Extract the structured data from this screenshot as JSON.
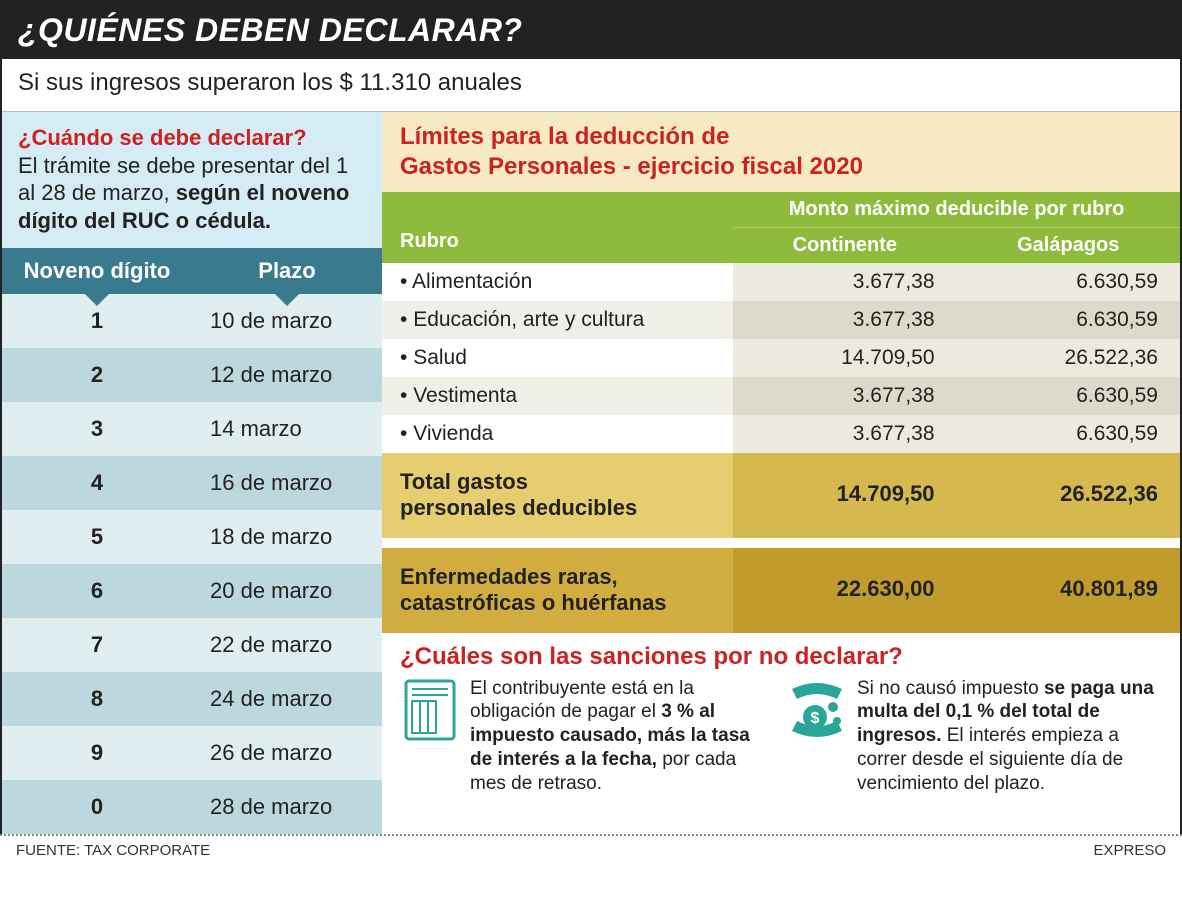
{
  "colors": {
    "title_bg": "#222222",
    "title_fg": "#ffffff",
    "accent_red": "#c22222",
    "when_bg": "#d6ecf4",
    "sched_header_bg": "#3a7a8f",
    "sched_row_light": "#e1eef1",
    "sched_row_dark": "#bcd7de",
    "limits_title_bg": "#f8e9c5",
    "limits_header_bg": "#8fbb3d",
    "limits_row_odd_label": "#ffffff",
    "limits_row_odd_val": "#eceade",
    "limits_row_even_label": "#f1f0e8",
    "limits_row_even_val": "#dddacb",
    "total1_label": "#e6cd6f",
    "total1_val": "#d6b94e",
    "total2_label": "#d1ad3f",
    "total2_val": "#c19b2c",
    "icon_teal": "#2aa59a"
  },
  "title": "¿QUIÉNES DEBEN DECLARAR?",
  "subhead": "Si sus ingresos superaron los $ 11.310 anuales",
  "when": {
    "question": "¿Cuándo se debe declarar?",
    "text_pre": "El trámite se debe presentar del 1 al 28 de marzo, ",
    "text_bold": "según el noveno dígito del RUC o cédula."
  },
  "schedule": {
    "head_digit": "Noveno dígito",
    "head_deadline": "Plazo",
    "rows": [
      {
        "digit": "1",
        "deadline": "10 de marzo"
      },
      {
        "digit": "2",
        "deadline": "12 de marzo"
      },
      {
        "digit": "3",
        "deadline": "14 marzo"
      },
      {
        "digit": "4",
        "deadline": "16 de marzo"
      },
      {
        "digit": "5",
        "deadline": "18 de marzo"
      },
      {
        "digit": "6",
        "deadline": "20 de marzo"
      },
      {
        "digit": "7",
        "deadline": "22 de marzo"
      },
      {
        "digit": "8",
        "deadline": "24 de marzo"
      },
      {
        "digit": "9",
        "deadline": "26 de marzo"
      },
      {
        "digit": "0",
        "deadline": "28 de marzo"
      }
    ]
  },
  "limits": {
    "title_line1": "Límites para la deducción de",
    "title_line2": "Gastos Personales - ejercicio fiscal 2020",
    "head_rubro": "Rubro",
    "head_monto": "Monto máximo deducible por rubro",
    "head_cont": "Continente",
    "head_gal": "Galápagos",
    "rows": [
      {
        "rubro": "Alimentación",
        "cont": "3.677,38",
        "gal": "6.630,59"
      },
      {
        "rubro": "Educación, arte y cultura",
        "cont": "3.677,38",
        "gal": "6.630,59"
      },
      {
        "rubro": "Salud",
        "cont": "14.709,50",
        "gal": "26.522,36"
      },
      {
        "rubro": "Vestimenta",
        "cont": "3.677,38",
        "gal": "6.630,59"
      },
      {
        "rubro": "Vivienda",
        "cont": "3.677,38",
        "gal": "6.630,59"
      }
    ],
    "total1": {
      "label_l1": "Total gastos",
      "label_l2": "personales deducibles",
      "cont": "14.709,50",
      "gal": "26.522,36"
    },
    "total2": {
      "label_l1": "Enfermedades raras,",
      "label_l2": "catastróficas o huérfanas",
      "cont": "22.630,00",
      "gal": "40.801,89"
    }
  },
  "sanctions": {
    "question": "¿Cuáles son las sanciones por no declarar?",
    "col1": {
      "pre": "El contribuyente está en la obligación de pagar el ",
      "bold": "3 % al impuesto causado, más la tasa de interés a la fecha,",
      "post": " por cada mes de retraso."
    },
    "col2": {
      "pre": "Si no causó impuesto ",
      "bold": "se paga una multa del 0,1 % del total de ingresos.",
      "post": " El interés empieza a correr desde el siguiente día de vencimiento del plazo."
    }
  },
  "footer": {
    "source": "FUENTE: TAX CORPORATE",
    "brand": "EXPRESO"
  }
}
